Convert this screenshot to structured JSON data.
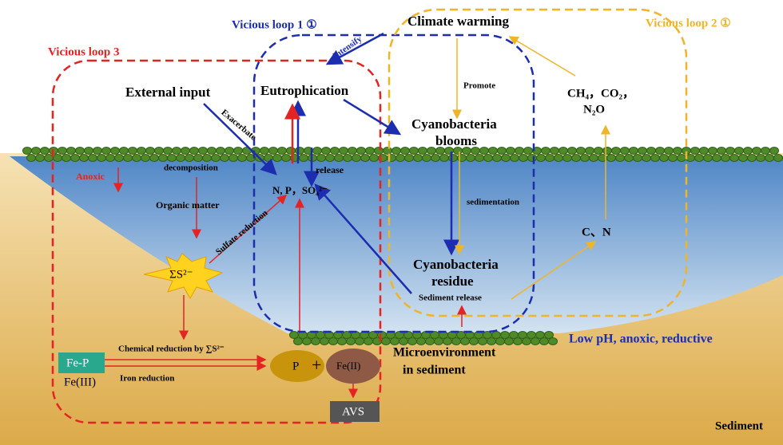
{
  "loops": {
    "loop1": "Vicious loop 1 ①",
    "loop2": "Vicious loop 2 ①",
    "loop3": "Vicious loop 3"
  },
  "nodes": {
    "climate_warming": "Climate warming",
    "external_input": "External input",
    "eutrophication": "Eutrophication",
    "gases": [
      "CH₄，CO₂，",
      "N₂O"
    ],
    "cyanobacteria_blooms": [
      "Cyanobacteria",
      "blooms"
    ],
    "nutrients": "N, P，SO₄²⁻",
    "organic_matter": "Organic matter",
    "carbon_nitrogen": "C、N",
    "sulfide": "ΣS²⁻",
    "cyanobacteria_residue": [
      "Cyanobacteria",
      "residue"
    ],
    "fe_p": "Fe-P",
    "fe_iii": "Fe(III)",
    "p": "P",
    "plus": "+",
    "fe_ii": "Fe(II)",
    "avs": "AVS",
    "microenvironment": [
      "Microenvironment",
      "in sediment"
    ],
    "conditions": "Low pH, anoxic, reductive",
    "sediment": "Sediment"
  },
  "edge_labels": {
    "intensify": "Intensify",
    "exacerbate": "Exacerbate",
    "promote": "Promote",
    "anoxic": "Anoxic",
    "decomposition": "decomposition",
    "release": "release",
    "sedimentation": "sedimentation",
    "sulfate_reduction": "Sulfate reduction",
    "sediment_release": "Sediment release",
    "chemical_reduction": "Chemical reduction by ∑S²⁻",
    "iron_reduction": "Iron reduction"
  }
}
